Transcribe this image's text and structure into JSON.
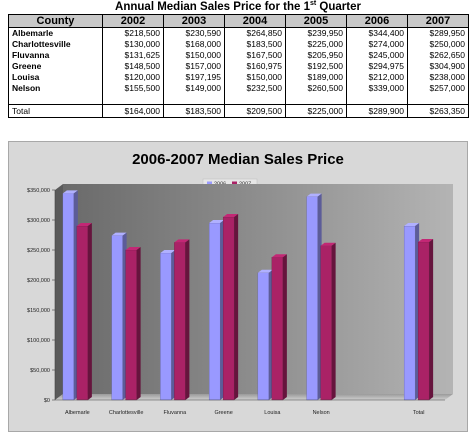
{
  "table": {
    "title": "Annual Median Sales Price for the 1",
    "title_sup": "st",
    "title_end": " Quarter",
    "headers": [
      "County",
      "2002",
      "2003",
      "2004",
      "2005",
      "2006",
      "2007"
    ],
    "rows": [
      {
        "county": "Albemarle",
        "values": [
          "$218,500",
          "$230,590",
          "$264,850",
          "$239,950",
          "$344,400",
          "$289,950"
        ]
      },
      {
        "county": "Charlottesville",
        "values": [
          "$130,000",
          "$168,000",
          "$183,500",
          "$225,000",
          "$274,000",
          "$250,000"
        ]
      },
      {
        "county": "Fluvanna",
        "values": [
          "$131,625",
          "$150,000",
          "$167,500",
          "$205,950",
          "$245,000",
          "$262,650"
        ]
      },
      {
        "county": "Greene",
        "values": [
          "$148,500",
          "$157,000",
          "$160,975",
          "$192,500",
          "$294,975",
          "$304,900"
        ]
      },
      {
        "county": "Louisa",
        "values": [
          "$120,000",
          "$197,195",
          "$150,000",
          "$189,000",
          "$212,000",
          "$238,000"
        ]
      },
      {
        "county": "Nelson",
        "values": [
          "$155,500",
          "$149,000",
          "$232,500",
          "$260,500",
          "$339,000",
          "$257,000"
        ]
      }
    ],
    "total": {
      "county": "Total",
      "values": [
        "$164,000",
        "$183,500",
        "$209,500",
        "$225,000",
        "$289,900",
        "$263,350"
      ]
    }
  },
  "chart_data": {
    "type": "bar",
    "title": "2006-2007 Median Sales Price",
    "categories": [
      "Albemarle",
      "Charlottesville",
      "Fluvanna",
      "Greene",
      "Louisa",
      "Nelson",
      "",
      "Total"
    ],
    "series": [
      {
        "name": "2006",
        "values": [
          344400,
          274000,
          245000,
          294975,
          212000,
          339000,
          null,
          289900
        ],
        "color": "#9999ff"
      },
      {
        "name": "2007",
        "values": [
          289950,
          250000,
          262650,
          304900,
          238000,
          257000,
          null,
          263350
        ],
        "color": "#aa2266"
      }
    ],
    "y_ticks": [
      "$0",
      "$50,000",
      "$100,000",
      "$150,000",
      "$200,000",
      "$250,000",
      "$300,000",
      "$350,000"
    ],
    "ylim": [
      0,
      350000
    ],
    "legend_position": "top-center",
    "grid": false,
    "style": "3d-column"
  }
}
